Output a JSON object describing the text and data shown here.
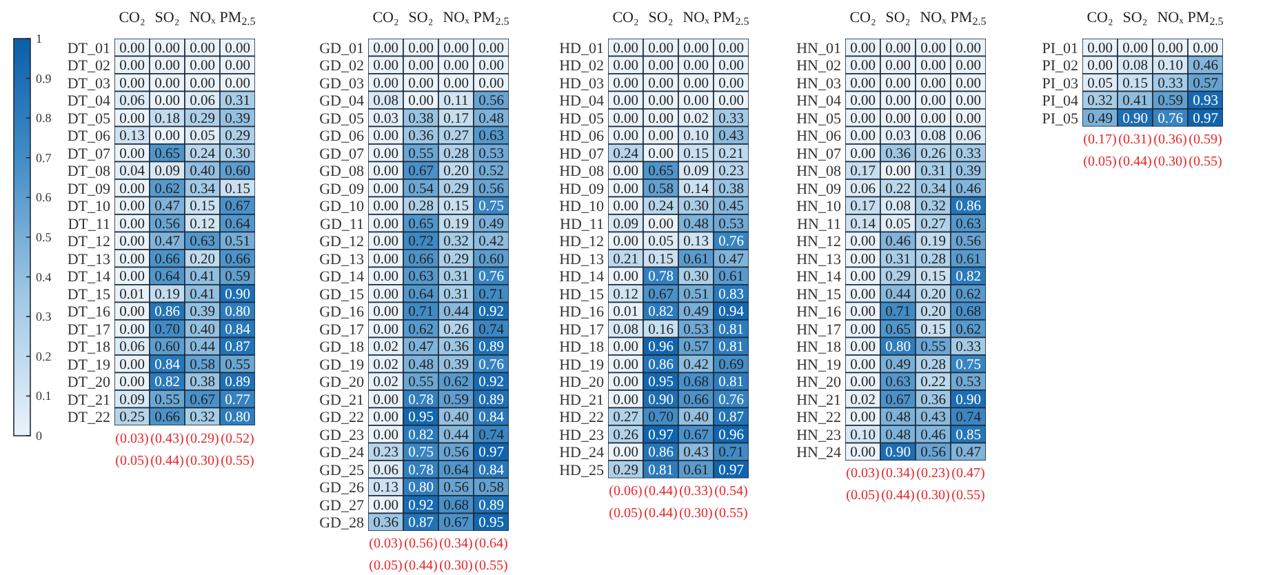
{
  "chart_data": [
    {
      "type": "heatmap",
      "categories": [
        "CO₂",
        "SO₂",
        "NOₓ",
        "PM$_{2.5}$"
      ],
      "clim": [
        0,
        1
      ],
      "cticks": [
        0,
        0.1,
        0.2,
        0.3,
        0.4,
        0.5,
        0.6,
        0.7,
        0.8,
        0.9,
        1
      ],
      "data_labels": true,
      "y_categories": [
        "DT_01",
        "DT_02",
        "DT_03",
        "DT_04",
        "DT_05",
        "DT_06",
        "DT_07",
        "DT_08",
        "DT_09",
        "DT_10",
        "DT_11",
        "DT_12",
        "DT_13",
        "DT_14",
        "DT_15",
        "DT_16",
        "DT_17",
        "DT_18",
        "DT_19",
        "DT_20",
        "DT_21",
        "DT_22"
      ],
      "cells": [
        [
          0,
          0,
          0,
          0
        ],
        [
          0,
          0,
          0,
          0
        ],
        [
          0,
          0,
          0,
          0
        ],
        [
          0.06,
          0,
          0.06,
          0.31
        ],
        [
          0,
          0.18,
          0.29,
          0.39
        ],
        [
          0.13,
          0,
          0.05,
          0.29
        ],
        [
          0,
          0.65,
          0.24,
          0.3
        ],
        [
          0.04,
          0.09,
          0.4,
          0.6
        ],
        [
          0,
          0.62,
          0.34,
          0.15
        ],
        [
          0,
          0.47,
          0.15,
          0.67
        ],
        [
          0,
          0.56,
          0.12,
          0.64
        ],
        [
          0,
          0.47,
          0.63,
          0.51
        ],
        [
          0,
          0.66,
          0.2,
          0.66
        ],
        [
          0,
          0.64,
          0.41,
          0.59
        ],
        [
          0.01,
          0.19,
          0.41,
          0.9
        ],
        [
          0,
          0.86,
          0.39,
          0.8
        ],
        [
          0,
          0.7,
          0.4,
          0.84
        ],
        [
          0.06,
          0.6,
          0.44,
          0.87
        ],
        [
          0,
          0.84,
          0.58,
          0.55
        ],
        [
          0,
          0.82,
          0.38,
          0.89
        ],
        [
          0.09,
          0.55,
          0.67,
          0.77
        ],
        [
          0.25,
          0.66,
          0.32,
          0.8
        ]
      ],
      "cell_labels": [
        [
          "0.00",
          "0.00",
          "0.00",
          "0.00"
        ],
        [
          "0.00",
          "0.00",
          "0.00",
          "0.00"
        ],
        [
          "0.00",
          "0.00",
          "0.00",
          "0.00"
        ],
        [
          "0.06",
          "0.00",
          "0.06",
          "0.31"
        ],
        [
          "0.00",
          "0.18",
          "0.29",
          "0.39"
        ],
        [
          "0.13",
          "0.00",
          "0.05",
          "0.29"
        ],
        [
          "0.00",
          "0.65",
          "0.24",
          "0.30"
        ],
        [
          "0.04",
          "0.09",
          "0.40",
          "0.60"
        ],
        [
          "0.00",
          "0.62",
          "0.34",
          "0.15"
        ],
        [
          "0.00",
          "0.47",
          "0.15",
          "0.67"
        ],
        [
          "0.00",
          "0.56",
          "0.12",
          "0.64"
        ],
        [
          "0.00",
          "0.47",
          "0.63",
          "0.51"
        ],
        [
          "0.00",
          "0.66",
          "0.20",
          "0.66"
        ],
        [
          "0.00",
          "0.64",
          "0.41",
          "0.59"
        ],
        [
          "0.01",
          "0.19",
          "0.41",
          "0.90"
        ],
        [
          "0.00",
          "0.86",
          "0.39",
          "0.80"
        ],
        [
          "0.00",
          "0.70",
          "0.40",
          "0.84"
        ],
        [
          "0.06",
          "0.60",
          "0.44",
          "0.87"
        ],
        [
          "0.00",
          "0.84",
          "0.58",
          "0.55"
        ],
        [
          "0.00",
          "0.82",
          "0.38",
          "0.89"
        ],
        [
          "0.09",
          "0.55",
          "0.67",
          "0.77"
        ],
        [
          "0.25",
          "0.66",
          "0.32",
          "0.80"
        ]
      ],
      "annotations": [
        "(0.03)",
        "(0.43)",
        "(0.29)",
        "(0.52)",
        "(0.05)",
        "(0.44)",
        "(0.30)",
        "(0.55)"
      ]
    },
    {
      "type": "heatmap",
      "categories": [
        "CO₂",
        "SO₂",
        "NOₓ",
        "PM$_{2.5}$"
      ],
      "data_labels": true,
      "y_categories": [
        "GD_01",
        "GD_02",
        "GD_03",
        "GD_04",
        "GD_05",
        "GD_06",
        "GD_07",
        "GD_08",
        "GD_09",
        "GD_10",
        "GD_11",
        "GD_12",
        "GD_13",
        "GD_14",
        "GD_15",
        "GD_16",
        "GD_17",
        "GD_18",
        "GD_19",
        "GD_20",
        "GD_21",
        "GD_22",
        "GD_23",
        "GD_24",
        "GD_25",
        "GD_26",
        "GD_27",
        "GD_28"
      ],
      "cells": [
        [
          0,
          0,
          0,
          0
        ],
        [
          0,
          0,
          0,
          0
        ],
        [
          0,
          0,
          0,
          0
        ],
        [
          0.08,
          0,
          0.11,
          0.56
        ],
        [
          0.03,
          0.38,
          0.17,
          0.48
        ],
        [
          0,
          0.36,
          0.27,
          0.63
        ],
        [
          0,
          0.55,
          0.28,
          0.53
        ],
        [
          0,
          0.67,
          0.2,
          0.52
        ],
        [
          0,
          0.54,
          0.29,
          0.56
        ],
        [
          0,
          0.28,
          0.15,
          0.75
        ],
        [
          0,
          0.65,
          0.19,
          0.49
        ],
        [
          0,
          0.72,
          0.32,
          0.42
        ],
        [
          0,
          0.66,
          0.29,
          0.6
        ],
        [
          0,
          0.63,
          0.31,
          0.76
        ],
        [
          0,
          0.64,
          0.31,
          0.71
        ],
        [
          0,
          0.71,
          0.44,
          0.92
        ],
        [
          0,
          0.62,
          0.26,
          0.74
        ],
        [
          0.02,
          0.47,
          0.36,
          0.89
        ],
        [
          0.02,
          0.48,
          0.39,
          0.76
        ],
        [
          0.02,
          0.55,
          0.62,
          0.92
        ],
        [
          0,
          0.78,
          0.59,
          0.89
        ],
        [
          0,
          0.95,
          0.4,
          0.84
        ],
        [
          0,
          0.82,
          0.44,
          0.74
        ],
        [
          0.23,
          0.75,
          0.56,
          0.97
        ],
        [
          0.06,
          0.78,
          0.64,
          0.84
        ],
        [
          0.13,
          0.8,
          0.56,
          0.58
        ],
        [
          0,
          0.92,
          0.68,
          0.89
        ],
        [
          0.36,
          0.87,
          0.67,
          0.95
        ]
      ],
      "cell_labels": [
        [
          "0.00",
          "0.00",
          "0.00",
          "0.00"
        ],
        [
          "0.00",
          "0.00",
          "0.00",
          "0.00"
        ],
        [
          "0.00",
          "0.00",
          "0.00",
          "0.00"
        ],
        [
          "0.08",
          "0.00",
          "0.11",
          "0.56"
        ],
        [
          "0.03",
          "0.38",
          "0.17",
          "0.48"
        ],
        [
          "0.00",
          "0.36",
          "0.27",
          "0.63"
        ],
        [
          "0.00",
          "0.55",
          "0.28",
          "0.53"
        ],
        [
          "0.00",
          "0.67",
          "0.20",
          "0.52"
        ],
        [
          "0.00",
          "0.54",
          "0.29",
          "0.56"
        ],
        [
          "0.00",
          "0.28",
          "0.15",
          "0.75"
        ],
        [
          "0.00",
          "0.65",
          "0.19",
          "0.49"
        ],
        [
          "0.00",
          "0.72",
          "0.32",
          "0.42"
        ],
        [
          "0.00",
          "0.66",
          "0.29",
          "0.60"
        ],
        [
          "0.00",
          "0.63",
          "0.31",
          "0.76"
        ],
        [
          "0.00",
          "0.64",
          "0.31",
          "0.71"
        ],
        [
          "0.00",
          "0.71",
          "0.44",
          "0.92"
        ],
        [
          "0.00",
          "0.62",
          "0.26",
          "0.74"
        ],
        [
          "0.02",
          "0.47",
          "0.36",
          "0.89"
        ],
        [
          "0.02",
          "0.48",
          "0.39",
          "0.76"
        ],
        [
          "0.02",
          "0.55",
          "0.62",
          "0.92"
        ],
        [
          "0.00",
          "0.78",
          "0.59",
          "0.89"
        ],
        [
          "0.00",
          "0.95",
          "0.40",
          "0.84"
        ],
        [
          "0.00",
          "0.82",
          "0.44",
          "0.74"
        ],
        [
          "0.23",
          "0.75",
          "0.56",
          "0.97"
        ],
        [
          "0.06",
          "0.78",
          "0.64",
          "0.84"
        ],
        [
          "0.13",
          "0.80",
          "0.56",
          "0.58"
        ],
        [
          "0.00",
          "0.92",
          "0.68",
          "0.89"
        ],
        [
          "0.36",
          "0.87",
          "0.67",
          "0.95"
        ]
      ],
      "annotations": [
        "(0.03)",
        "(0.56)",
        "(0.34)",
        "(0.64)",
        "(0.05)",
        "(0.44)",
        "(0.30)",
        "(0.55)"
      ]
    },
    {
      "type": "heatmap",
      "categories": [
        "CO₂",
        "SO₂",
        "NOₓ",
        "PM$_{2.5}$"
      ],
      "data_labels": true,
      "y_categories": [
        "HD_01",
        "HD_02",
        "HD_03",
        "HD_04",
        "HD_05",
        "HD_06",
        "HD_07",
        "HD_08",
        "HD_09",
        "HD_10",
        "HD_11",
        "HD_12",
        "HD_13",
        "HD_14",
        "HD_15",
        "HD_16",
        "HD_17",
        "HD_18",
        "HD_19",
        "HD_20",
        "HD_21",
        "HD_22",
        "HD_23",
        "HD_24",
        "HD_25"
      ],
      "cells": [
        [
          0,
          0,
          0,
          0
        ],
        [
          0,
          0,
          0,
          0
        ],
        [
          0,
          0,
          0,
          0
        ],
        [
          0,
          0,
          0,
          0
        ],
        [
          0,
          0,
          0.02,
          0.33
        ],
        [
          0,
          0,
          0.1,
          0.43
        ],
        [
          0.24,
          0,
          0.15,
          0.21
        ],
        [
          0,
          0.65,
          0.09,
          0.23
        ],
        [
          0,
          0.58,
          0.14,
          0.38
        ],
        [
          0,
          0.24,
          0.3,
          0.45
        ],
        [
          0.09,
          0,
          0.48,
          0.53
        ],
        [
          0,
          0.05,
          0.13,
          0.76
        ],
        [
          0.21,
          0.15,
          0.61,
          0.47
        ],
        [
          0,
          0.78,
          0.3,
          0.61
        ],
        [
          0.12,
          0.67,
          0.51,
          0.83
        ],
        [
          0.01,
          0.82,
          0.49,
          0.94
        ],
        [
          0.08,
          0.16,
          0.53,
          0.81
        ],
        [
          0,
          0.96,
          0.57,
          0.81
        ],
        [
          0,
          0.86,
          0.42,
          0.69
        ],
        [
          0,
          0.95,
          0.68,
          0.81
        ],
        [
          0,
          0.9,
          0.66,
          0.76
        ],
        [
          0.27,
          0.7,
          0.4,
          0.87
        ],
        [
          0.26,
          0.97,
          0.67,
          0.96
        ],
        [
          0,
          0.86,
          0.43,
          0.71
        ],
        [
          0.29,
          0.81,
          0.61,
          0.97
        ]
      ],
      "cell_labels": [
        [
          "0.00",
          "0.00",
          "0.00",
          "0.00"
        ],
        [
          "0.00",
          "0.00",
          "0.00",
          "0.00"
        ],
        [
          "0.00",
          "0.00",
          "0.00",
          "0.00"
        ],
        [
          "0.00",
          "0.00",
          "0.00",
          "0.00"
        ],
        [
          "0.00",
          "0.00",
          "0.02",
          "0.33"
        ],
        [
          "0.00",
          "0.00",
          "0.10",
          "0.43"
        ],
        [
          "0.24",
          "0.00",
          "0.15",
          "0.21"
        ],
        [
          "0.00",
          "0.65",
          "0.09",
          "0.23"
        ],
        [
          "0.00",
          "0.58",
          "0.14",
          "0.38"
        ],
        [
          "0.00",
          "0.24",
          "0.30",
          "0.45"
        ],
        [
          "0.09",
          "0.00",
          "0.48",
          "0.53"
        ],
        [
          "0.00",
          "0.05",
          "0.13",
          "0.76"
        ],
        [
          "0.21",
          "0.15",
          "0.61",
          "0.47"
        ],
        [
          "0.00",
          "0.78",
          "0.30",
          "0.61"
        ],
        [
          "0.12",
          "0.67",
          "0.51",
          "0.83"
        ],
        [
          "0.01",
          "0.82",
          "0.49",
          "0.94"
        ],
        [
          "0.08",
          "0.16",
          "0.53",
          "0.81"
        ],
        [
          "0.00",
          "0.96",
          "0.57",
          "0.81"
        ],
        [
          "0.00",
          "0.86",
          "0.42",
          "0.69"
        ],
        [
          "0.00",
          "0.95",
          "0.68",
          "0.81"
        ],
        [
          "0.00",
          "0.90",
          "0.66",
          "0.76"
        ],
        [
          "0.27",
          "0.70",
          "0.40",
          "0.87"
        ],
        [
          "0.26",
          "0.97",
          "0.67",
          "0.96"
        ],
        [
          "0.00",
          "0.86",
          "0.43",
          "0.71"
        ],
        [
          "0.29",
          "0.81",
          "0.61",
          "0.97"
        ]
      ],
      "annotations": [
        "(0.06)",
        "(0.44)",
        "(0.33)",
        "(0.54)",
        "(0.05)",
        "(0.44)",
        "(0.30)",
        "(0.55)"
      ]
    },
    {
      "type": "heatmap",
      "categories": [
        "CO₂",
        "SO₂",
        "NOₓ",
        "PM$_{2.5}$"
      ],
      "data_labels": true,
      "y_categories": [
        "HN_01",
        "HN_02",
        "HN_03",
        "HN_04",
        "HN_05",
        "HN_06",
        "HN_07",
        "HN_08",
        "HN_09",
        "HN_10",
        "HN_11",
        "HN_12",
        "HN_13",
        "HN_14",
        "HN_15",
        "HN_16",
        "HN_17",
        "HN_18",
        "HN_19",
        "HN_20",
        "HN_21",
        "HN_22",
        "HN_23",
        "HN_24"
      ],
      "cells": [
        [
          0,
          0,
          0,
          0
        ],
        [
          0,
          0,
          0,
          0
        ],
        [
          0,
          0,
          0,
          0
        ],
        [
          0,
          0,
          0,
          0
        ],
        [
          0,
          0,
          0,
          0
        ],
        [
          0,
          0.03,
          0.08,
          0.06
        ],
        [
          0,
          0.36,
          0.26,
          0.33
        ],
        [
          0.17,
          0,
          0.31,
          0.39
        ],
        [
          0.06,
          0.22,
          0.34,
          0.46
        ],
        [
          0.17,
          0.08,
          0.32,
          0.86
        ],
        [
          0.14,
          0.05,
          0.27,
          0.63
        ],
        [
          0,
          0.46,
          0.19,
          0.56
        ],
        [
          0,
          0.31,
          0.28,
          0.61
        ],
        [
          0,
          0.29,
          0.15,
          0.82
        ],
        [
          0,
          0.44,
          0.2,
          0.62
        ],
        [
          0,
          0.71,
          0.2,
          0.68
        ],
        [
          0,
          0.65,
          0.15,
          0.62
        ],
        [
          0,
          0.8,
          0.55,
          0.33
        ],
        [
          0,
          0.49,
          0.28,
          0.75
        ],
        [
          0,
          0.63,
          0.22,
          0.53
        ],
        [
          0.02,
          0.67,
          0.36,
          0.9
        ],
        [
          0,
          0.48,
          0.43,
          0.74
        ],
        [
          0.1,
          0.48,
          0.46,
          0.85
        ],
        [
          0,
          0.9,
          0.56,
          0.47
        ]
      ],
      "cell_labels": [
        [
          "0.00",
          "0.00",
          "0.00",
          "0.00"
        ],
        [
          "0.00",
          "0.00",
          "0.00",
          "0.00"
        ],
        [
          "0.00",
          "0.00",
          "0.00",
          "0.00"
        ],
        [
          "0.00",
          "0.00",
          "0.00",
          "0.00"
        ],
        [
          "0.00",
          "0.00",
          "0.00",
          "0.00"
        ],
        [
          "0.00",
          "0.03",
          "0.08",
          "0.06"
        ],
        [
          "0.00",
          "0.36",
          "0.26",
          "0.33"
        ],
        [
          "0.17",
          "0.00",
          "0.31",
          "0.39"
        ],
        [
          "0.06",
          "0.22",
          "0.34",
          "0.46"
        ],
        [
          "0.17",
          "0.08",
          "0.32",
          "0.86"
        ],
        [
          "0.14",
          "0.05",
          "0.27",
          "0.63"
        ],
        [
          "0.00",
          "0.46",
          "0.19",
          "0.56"
        ],
        [
          "0.00",
          "0.31",
          "0.28",
          "0.61"
        ],
        [
          "0.00",
          "0.29",
          "0.15",
          "0.82"
        ],
        [
          "0.00",
          "0.44",
          "0.20",
          "0.62"
        ],
        [
          "0.00",
          "0.71",
          "0.20",
          "0.68"
        ],
        [
          "0.00",
          "0.65",
          "0.15",
          "0.62"
        ],
        [
          "0.00",
          "0.80",
          "0.55",
          "0.33"
        ],
        [
          "0.00",
          "0.49",
          "0.28",
          "0.75"
        ],
        [
          "0.00",
          "0.63",
          "0.22",
          "0.53"
        ],
        [
          "0.02",
          "0.67",
          "0.36",
          "0.90"
        ],
        [
          "0.00",
          "0.48",
          "0.43",
          "0.74"
        ],
        [
          "0.10",
          "0.48",
          "0.46",
          "0.85"
        ],
        [
          "0.00",
          "0.90",
          "0.56",
          "0.47"
        ]
      ],
      "annotations": [
        "(0.03)",
        "(0.34)",
        "(0.23)",
        "(0.47)",
        "(0.05)",
        "(0.44)",
        "(0.30)",
        "(0.55)"
      ]
    },
    {
      "type": "heatmap",
      "categories": [
        "CO₂",
        "SO₂",
        "NOₓ",
        "PM$_{2.5}$"
      ],
      "data_labels": true,
      "y_categories": [
        "PI_01",
        "PI_02",
        "PI_03",
        "PI_04",
        "PI_05"
      ],
      "cells": [
        [
          0,
          0,
          0,
          0
        ],
        [
          0,
          0.08,
          0.1,
          0.46
        ],
        [
          0.05,
          0.15,
          0.33,
          0.57
        ],
        [
          0.32,
          0.41,
          0.59,
          0.93
        ],
        [
          0.49,
          0.9,
          0.76,
          0.97
        ]
      ],
      "cell_labels": [
        [
          "0.00",
          "0.00",
          "0.00",
          "0.00"
        ],
        [
          "0.00",
          "0.08",
          "0.10",
          "0.46"
        ],
        [
          "0.05",
          "0.15",
          "0.33",
          "0.57"
        ],
        [
          "0.32",
          "0.41",
          "0.59",
          "0.93"
        ],
        [
          "0.49",
          "0.90",
          "0.76",
          "0.97"
        ]
      ],
      "annotations": [
        "(0.17)",
        "(0.31)",
        "(0.36)",
        "(0.59)",
        "(0.05)",
        "(0.44)",
        "(0.30)",
        "(0.55)"
      ]
    }
  ]
}
